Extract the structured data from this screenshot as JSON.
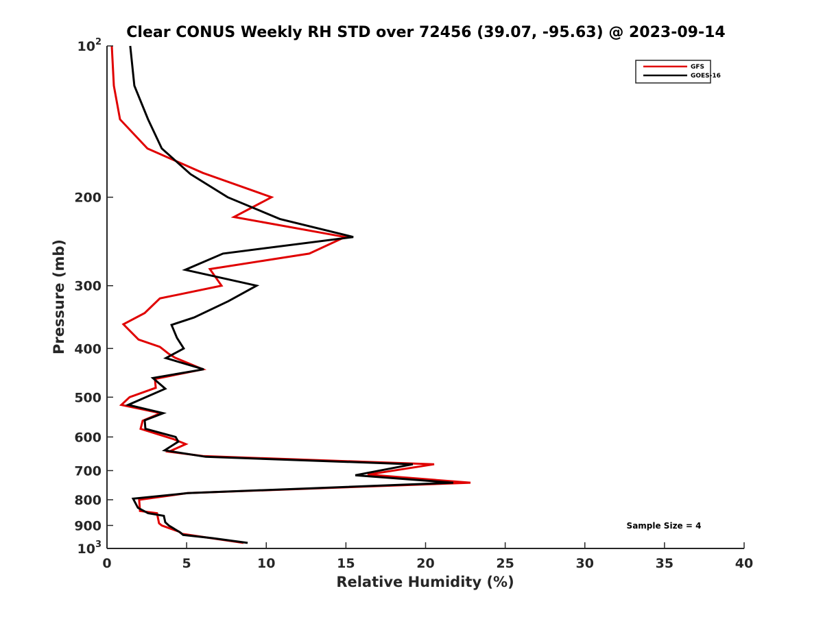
{
  "chart_data": {
    "type": "line",
    "title": "Clear CONUS Weekly RH STD over 72456 (39.07, -95.63) @ 2023-09-14",
    "xlabel": "Relative Humidity (%)",
    "ylabel": "Pressure (mb)",
    "xlim": [
      0,
      40
    ],
    "ylim": [
      100,
      1000
    ],
    "yscale": "log",
    "yreversed": true,
    "grid": false,
    "x_ticks": [
      0,
      5,
      10,
      15,
      20,
      25,
      30,
      35,
      40
    ],
    "x_tick_labels": [
      "0",
      "5",
      "10",
      "15",
      "20",
      "25",
      "30",
      "35",
      "40"
    ],
    "y_ticks": [
      100,
      200,
      300,
      400,
      500,
      600,
      700,
      800,
      900,
      1000
    ],
    "y_tick_labels": [
      {
        "base": "10",
        "exp": "2"
      },
      {
        "text": "200"
      },
      {
        "text": "300"
      },
      {
        "text": "400"
      },
      {
        "text": "500"
      },
      {
        "text": "600"
      },
      {
        "text": "700"
      },
      {
        "text": "800"
      },
      {
        "text": "900"
      },
      {
        "base": "10",
        "exp": "3"
      }
    ],
    "legend": {
      "placement": "top-right",
      "entries": [
        "GFS",
        "GOES-16"
      ]
    },
    "annotation": "Sample Size = 4",
    "series": [
      {
        "name": "GFS",
        "color": "#e00000",
        "points": [
          [
            0.3,
            100
          ],
          [
            0.43,
            120
          ],
          [
            0.82,
            140
          ],
          [
            2.54,
            160
          ],
          [
            6.03,
            179
          ],
          [
            10.33,
            200
          ],
          [
            7.97,
            219
          ],
          [
            14.94,
            240
          ],
          [
            12.7,
            259
          ],
          [
            6.46,
            278
          ],
          [
            7.19,
            300
          ],
          [
            3.32,
            318
          ],
          [
            2.37,
            340
          ],
          [
            1.03,
            358
          ],
          [
            1.98,
            384
          ],
          [
            3.32,
            397
          ],
          [
            3.88,
            410
          ],
          [
            4.26,
            417
          ],
          [
            6.03,
            440
          ],
          [
            3.01,
            460
          ],
          [
            3.06,
            479
          ],
          [
            1.42,
            500
          ],
          [
            0.9,
            518
          ],
          [
            3.36,
            538
          ],
          [
            2.24,
            557
          ],
          [
            2.11,
            578
          ],
          [
            4.18,
            606
          ],
          [
            4.95,
            620
          ],
          [
            3.88,
            642
          ],
          [
            6.03,
            655
          ],
          [
            20.54,
            680
          ],
          [
            16.36,
            713
          ],
          [
            22.82,
            740
          ],
          [
            5.04,
            776
          ],
          [
            2.02,
            800
          ],
          [
            2.07,
            842
          ],
          [
            3.14,
            851
          ],
          [
            3.27,
            891
          ],
          [
            3.44,
            900
          ],
          [
            4.52,
            926
          ],
          [
            4.69,
            935
          ],
          [
            6.54,
            954
          ],
          [
            8.57,
            975
          ]
        ]
      },
      {
        "name": "GOES-16",
        "color": "#000000",
        "points": [
          [
            1.46,
            100
          ],
          [
            1.72,
            120
          ],
          [
            2.58,
            140
          ],
          [
            3.44,
            160
          ],
          [
            5.25,
            180
          ],
          [
            7.58,
            200
          ],
          [
            10.85,
            221
          ],
          [
            15.46,
            240
          ],
          [
            7.28,
            259
          ],
          [
            4.91,
            279
          ],
          [
            9.39,
            300
          ],
          [
            7.62,
            322
          ],
          [
            5.47,
            347
          ],
          [
            4.05,
            359
          ],
          [
            4.39,
            381
          ],
          [
            4.82,
            400
          ],
          [
            3.7,
            418
          ],
          [
            6.07,
            440
          ],
          [
            2.88,
            458
          ],
          [
            3.66,
            481
          ],
          [
            1.33,
            518
          ],
          [
            3.53,
            538
          ],
          [
            2.37,
            556
          ],
          [
            2.41,
            578
          ],
          [
            4.31,
            600
          ],
          [
            4.48,
            613
          ],
          [
            3.62,
            638
          ],
          [
            6.2,
            657
          ],
          [
            19.2,
            680
          ],
          [
            15.59,
            715
          ],
          [
            21.74,
            740
          ],
          [
            5.08,
            776
          ],
          [
            1.64,
            796
          ],
          [
            1.94,
            830
          ],
          [
            2.58,
            851
          ],
          [
            3.57,
            861
          ],
          [
            3.66,
            887
          ],
          [
            3.88,
            900
          ],
          [
            4.61,
            930
          ],
          [
            4.78,
            940
          ],
          [
            6.63,
            954
          ],
          [
            8.83,
            975
          ]
        ]
      }
    ]
  }
}
